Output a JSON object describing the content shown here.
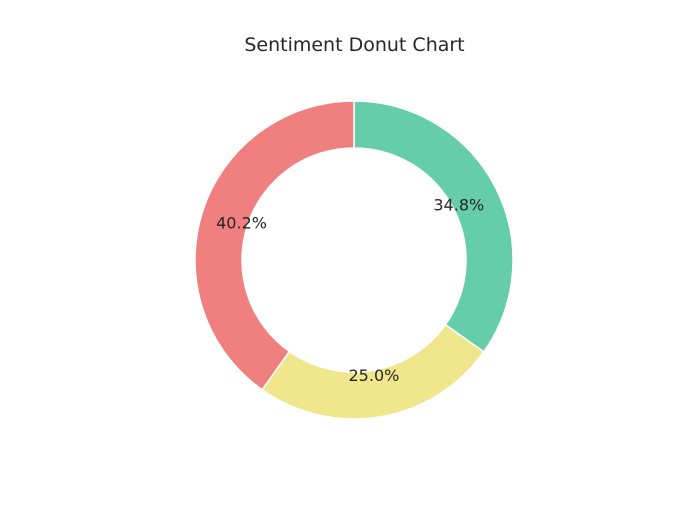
{
  "chart_data": {
    "type": "pie",
    "title": "Sentiment Donut Chart",
    "donut": true,
    "slices": [
      {
        "label": "34.8%",
        "value": 34.8,
        "color": "#66cdaa"
      },
      {
        "label": "25.0%",
        "value": 25.0,
        "color": "#f0e68c"
      },
      {
        "label": "40.2%",
        "value": 40.2,
        "color": "#f08080"
      }
    ],
    "start_angle": "top",
    "direction": "clockwise",
    "slice_edge_color": "#ffffff"
  }
}
